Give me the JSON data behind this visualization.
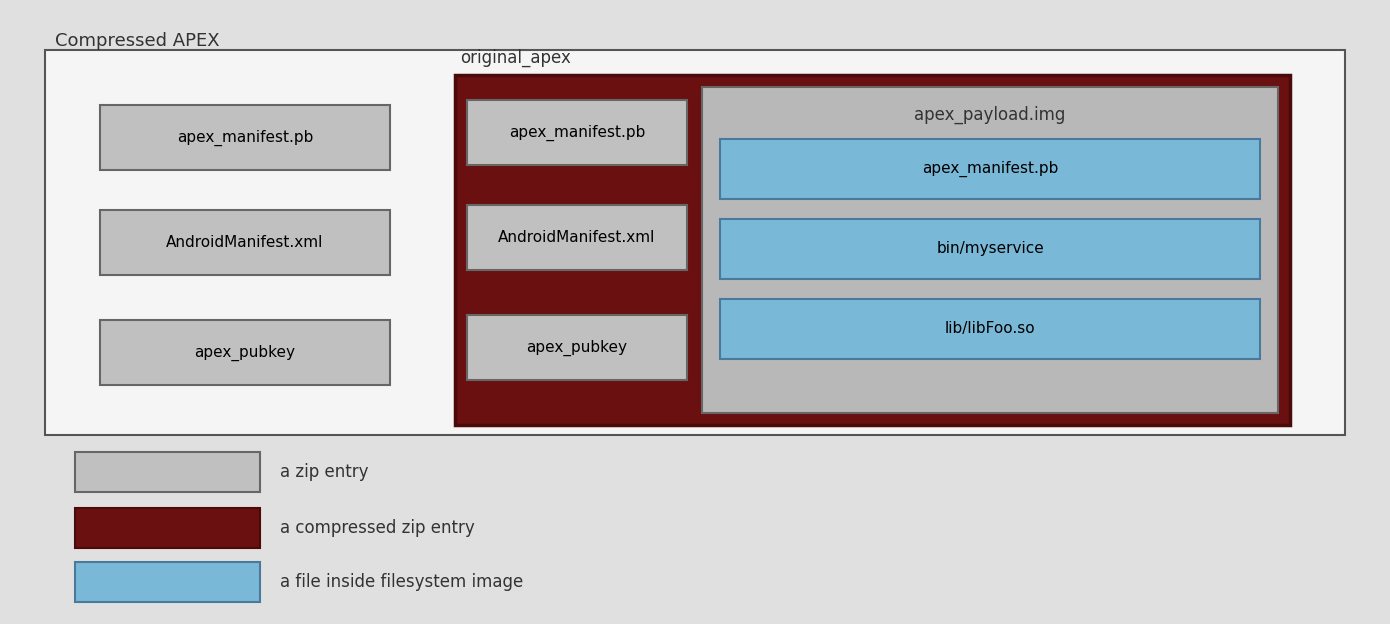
{
  "title": "Compressed APEX",
  "bg_color": "#e0e0e0",
  "outer_box_color": "#f5f5f5",
  "outer_box_edge": "#555555",
  "zip_entry_color": "#c0c0c0",
  "zip_entry_edge": "#666666",
  "compressed_zip_color": "#6b1010",
  "compressed_zip_edge": "#4a0a0a",
  "payload_bg_color": "#b8b8b8",
  "file_inside_color": "#7ab8d8",
  "file_inside_edge": "#4a7a9b",
  "original_apex_label": "original_apex",
  "apex_payload_label": "apex_payload.img",
  "left_items": [
    "apex_manifest.pb",
    "AndroidManifest.xml",
    "apex_pubkey"
  ],
  "middle_items": [
    "apex_manifest.pb",
    "AndroidManifest.xml",
    "apex_pubkey"
  ],
  "right_items": [
    "apex_manifest.pb",
    "bin/myservice",
    "lib/libFoo.so"
  ],
  "legend": [
    {
      "label": "a zip entry",
      "color": "#c0c0c0",
      "edge": "#666666"
    },
    {
      "label": "a compressed zip entry",
      "color": "#6b1010",
      "edge": "#4a0a0a"
    },
    {
      "label": "a file inside filesystem image",
      "color": "#7ab8d8",
      "edge": "#4a7a9b"
    }
  ]
}
